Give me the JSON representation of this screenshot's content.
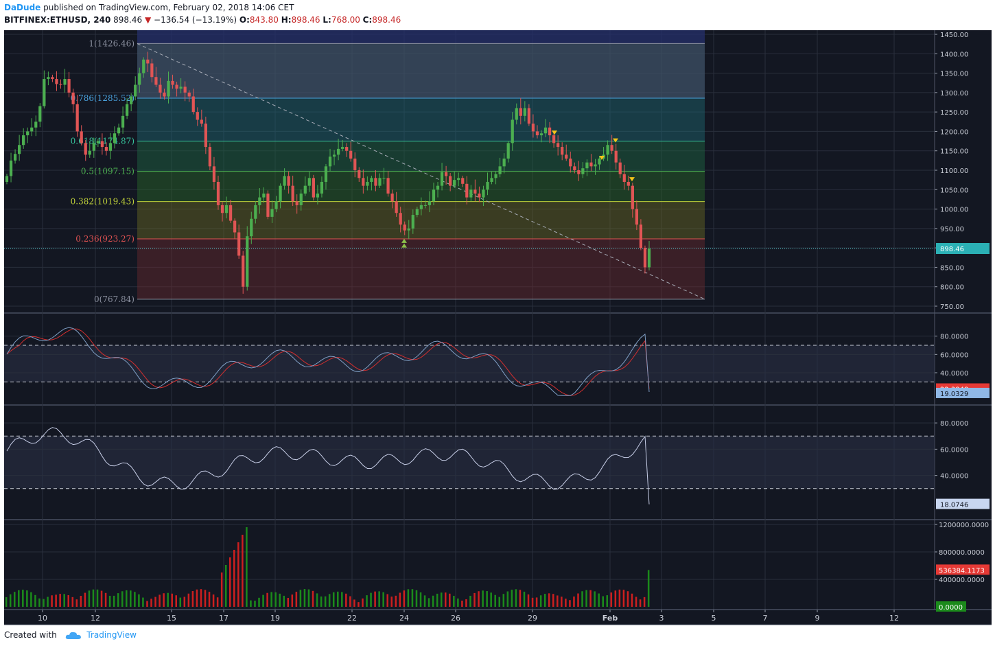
{
  "header": {
    "author": "DaDude",
    "published": " published on TradingView.com, February 02, 2018 14:06 CET",
    "symbol": "BITFINEX:ETHUSD, 240",
    "price": "898.46",
    "change": "−136.54 (−13.19%)",
    "o_label": "O:",
    "o_value": "843.80",
    "h_label": "H:",
    "h_value": "898.46",
    "l_label": "L:",
    "l_value": "768.00",
    "c_label": "C:",
    "c_value": "898.46"
  },
  "footer": {
    "created_with": "Created with",
    "brand": "TradingView"
  },
  "colors": {
    "background": "#131722",
    "up": "#4caf50",
    "down": "#e15555",
    "vol_up": "#1b8a1b",
    "vol_down": "#cc1f1f",
    "stoch_k": "#7f9ec4",
    "stoch_d": "#d32f2f",
    "rsi": "#c8cfe8"
  },
  "chart_data": [
    {
      "type": "candlestick",
      "name": "price",
      "price_axis": {
        "min": 750,
        "max": 1450,
        "ticks": [
          "1450.00",
          "1400.00",
          "1350.00",
          "1300.00",
          "1250.00",
          "1200.00",
          "1150.00",
          "1100.00",
          "1050.00",
          "1000.00",
          "950.00",
          "900.00",
          "850.00",
          "800.00",
          "750.00"
        ]
      },
      "current_price": 898.46,
      "fibonacci": [
        {
          "label": "1(1426.46)",
          "value": 1426.46,
          "color": "#8a8f9e"
        },
        {
          "label": "0.786(1285.52)",
          "value": 1285.52,
          "color": "#4aa3df"
        },
        {
          "label": "0.618(1174.87)",
          "value": 1174.87,
          "color": "#36c49c"
        },
        {
          "label": "0.5(1097.15)",
          "value": 1097.15,
          "color": "#4caf50"
        },
        {
          "label": "0.382(1019.43)",
          "value": 1019.43,
          "color": "#c0d13a"
        },
        {
          "label": "0.236(923.27)",
          "value": 923.27,
          "color": "#e05252"
        },
        {
          "label": "0(767.84)",
          "value": 767.84,
          "color": "#8a8f9e"
        }
      ],
      "closes": [
        1085,
        1125,
        1142,
        1165,
        1190,
        1200,
        1210,
        1225,
        1265,
        1335,
        1340,
        1335,
        1322,
        1320,
        1335,
        1300,
        1270,
        1200,
        1170,
        1140,
        1150,
        1170,
        1175,
        1160,
        1150,
        1170,
        1195,
        1210,
        1240,
        1270,
        1290,
        1320,
        1350,
        1385,
        1375,
        1340,
        1320,
        1300,
        1290,
        1330,
        1320,
        1310,
        1315,
        1300,
        1290,
        1250,
        1230,
        1220,
        1160,
        1110,
        1070,
        1010,
        990,
        1010,
        970,
        940,
        880,
        800,
        930,
        975,
        1010,
        1030,
        1040,
        980,
        1000,
        1020,
        1060,
        1085,
        1060,
        1020,
        1010,
        1040,
        1060,
        1080,
        1030,
        1040,
        1070,
        1110,
        1135,
        1140,
        1155,
        1160,
        1150,
        1130,
        1100,
        1080,
        1060,
        1070,
        1080,
        1060,
        1080,
        1080,
        1040,
        1020,
        990,
        960,
        945,
        950,
        985,
        1000,
        1010,
        1010,
        1020,
        1050,
        1060,
        1095,
        1085,
        1060,
        1075,
        1080,
        1065,
        1030,
        1050,
        1040,
        1030,
        1050,
        1070,
        1080,
        1090,
        1110,
        1130,
        1170,
        1230,
        1260,
        1240,
        1260,
        1220,
        1200,
        1190,
        1195,
        1210,
        1190,
        1170,
        1160,
        1140,
        1130,
        1110,
        1100,
        1090,
        1105,
        1120,
        1110,
        1115,
        1130,
        1140,
        1165,
        1150,
        1120,
        1090,
        1070,
        1060,
        1000,
        960,
        900,
        850,
        898
      ]
    },
    {
      "type": "line",
      "name": "stochastic",
      "axis": {
        "min": 10,
        "max": 100,
        "ticks": [
          "80.0000",
          "60.0000",
          "40.0000"
        ],
        "levels": [
          70,
          30
        ]
      },
      "last_values": {
        "d": "22.3848",
        "k": "19.0329"
      }
    },
    {
      "type": "line",
      "name": "rsi",
      "axis": {
        "min": 10,
        "max": 90,
        "ticks": [
          "80.0000",
          "60.0000",
          "40.0000"
        ],
        "levels": [
          70,
          30
        ]
      },
      "last_value": "18.0746"
    },
    {
      "type": "bar",
      "name": "volume",
      "axis": {
        "min": 0,
        "max": 1200000,
        "ticks": [
          "1200000.0000",
          "800000.0000",
          "400000.0000"
        ]
      },
      "last_value": "536384.1173",
      "zero_label": "0.0000"
    }
  ],
  "x_axis": {
    "labels": [
      "10",
      "12",
      "15",
      "17",
      "19",
      "22",
      "24",
      "26",
      "29",
      "Feb",
      "3",
      "5",
      "7",
      "9",
      "12"
    ]
  }
}
